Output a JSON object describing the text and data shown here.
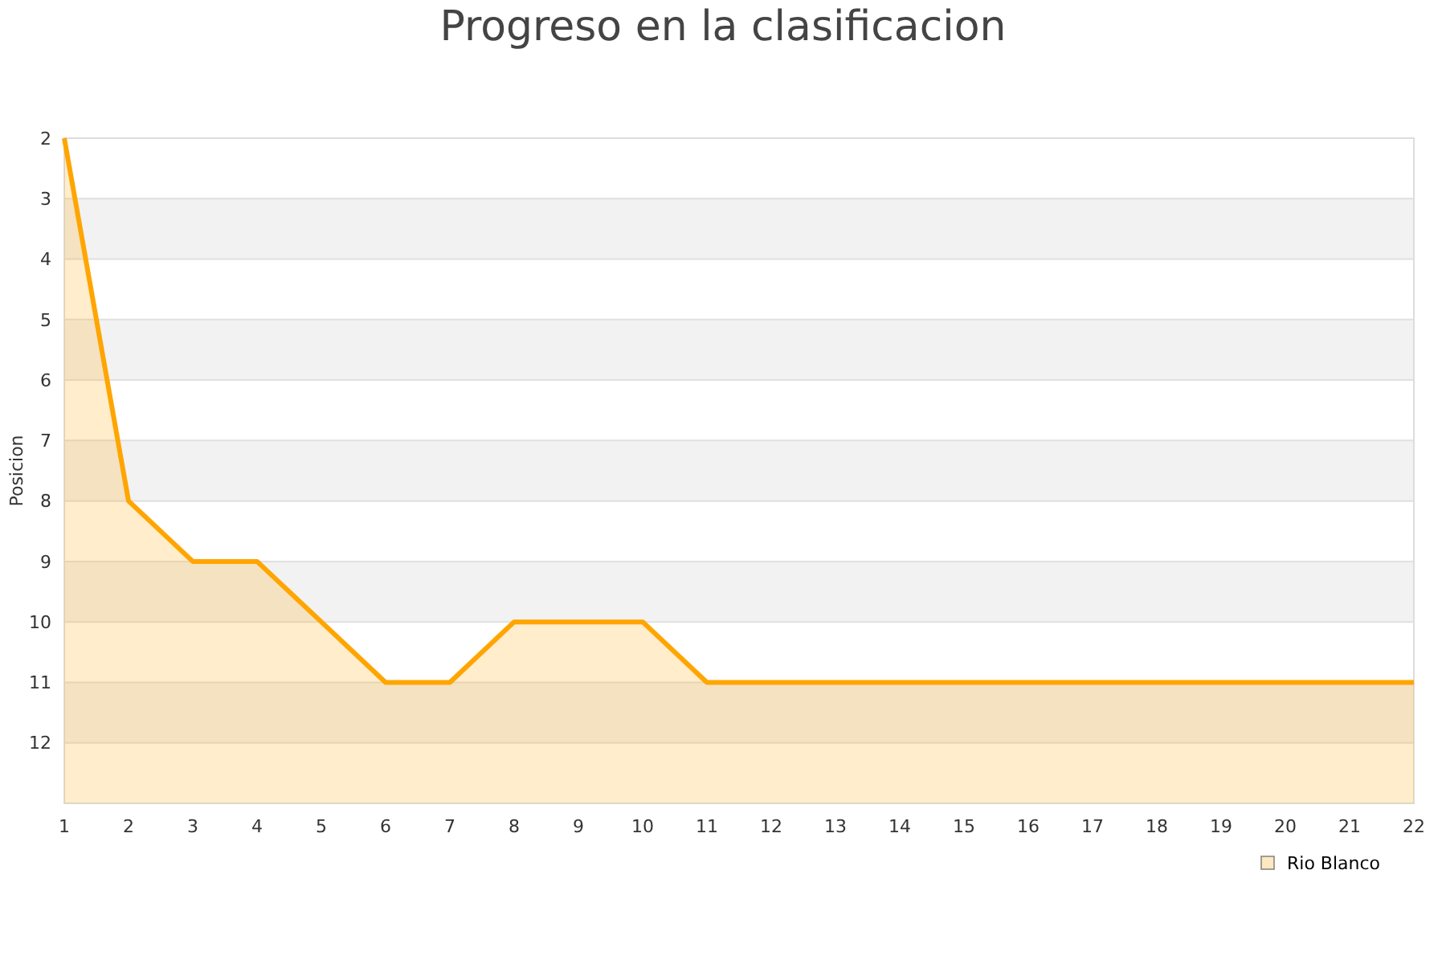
{
  "chart_data": {
    "type": "line",
    "title": "Progreso en la clasificacion",
    "ylabel": "Posicion",
    "x": [
      1,
      2,
      3,
      4,
      5,
      6,
      7,
      8,
      9,
      10,
      11,
      12,
      13,
      14,
      15,
      16,
      17,
      18,
      19,
      20,
      21,
      22
    ],
    "series": [
      {
        "name": "Rio Blanco",
        "color": "#ffa500",
        "values": [
          2,
          8,
          9,
          9,
          10,
          11,
          11,
          10,
          10,
          10,
          11,
          11,
          11,
          11,
          11,
          11,
          11,
          11,
          11,
          11,
          11,
          11
        ],
        "lower": [
          2,
          8,
          9,
          9,
          10,
          11,
          11,
          10,
          10,
          10,
          11,
          11,
          11,
          11,
          11,
          11,
          11,
          11,
          11,
          11,
          11,
          11
        ],
        "upper": [
          13,
          13,
          13,
          13,
          13,
          13,
          13,
          13,
          13,
          13,
          13,
          13,
          13,
          13,
          13,
          13,
          13,
          13,
          13,
          13,
          13,
          13
        ]
      }
    ],
    "xlim": [
      1,
      22
    ],
    "xticks": [
      1,
      2,
      3,
      4,
      5,
      6,
      7,
      8,
      9,
      10,
      11,
      12,
      13,
      14,
      15,
      16,
      17,
      18,
      19,
      20,
      21,
      22
    ],
    "ylim": [
      13,
      2
    ],
    "yticks": [
      2,
      3,
      4,
      5,
      6,
      7,
      8,
      9,
      10,
      11,
      12,
      {
        "value": 13,
        "label": null
      }
    ],
    "grid": "y",
    "legend": "bottom right",
    "marker": "none",
    "line_style": "solid"
  }
}
